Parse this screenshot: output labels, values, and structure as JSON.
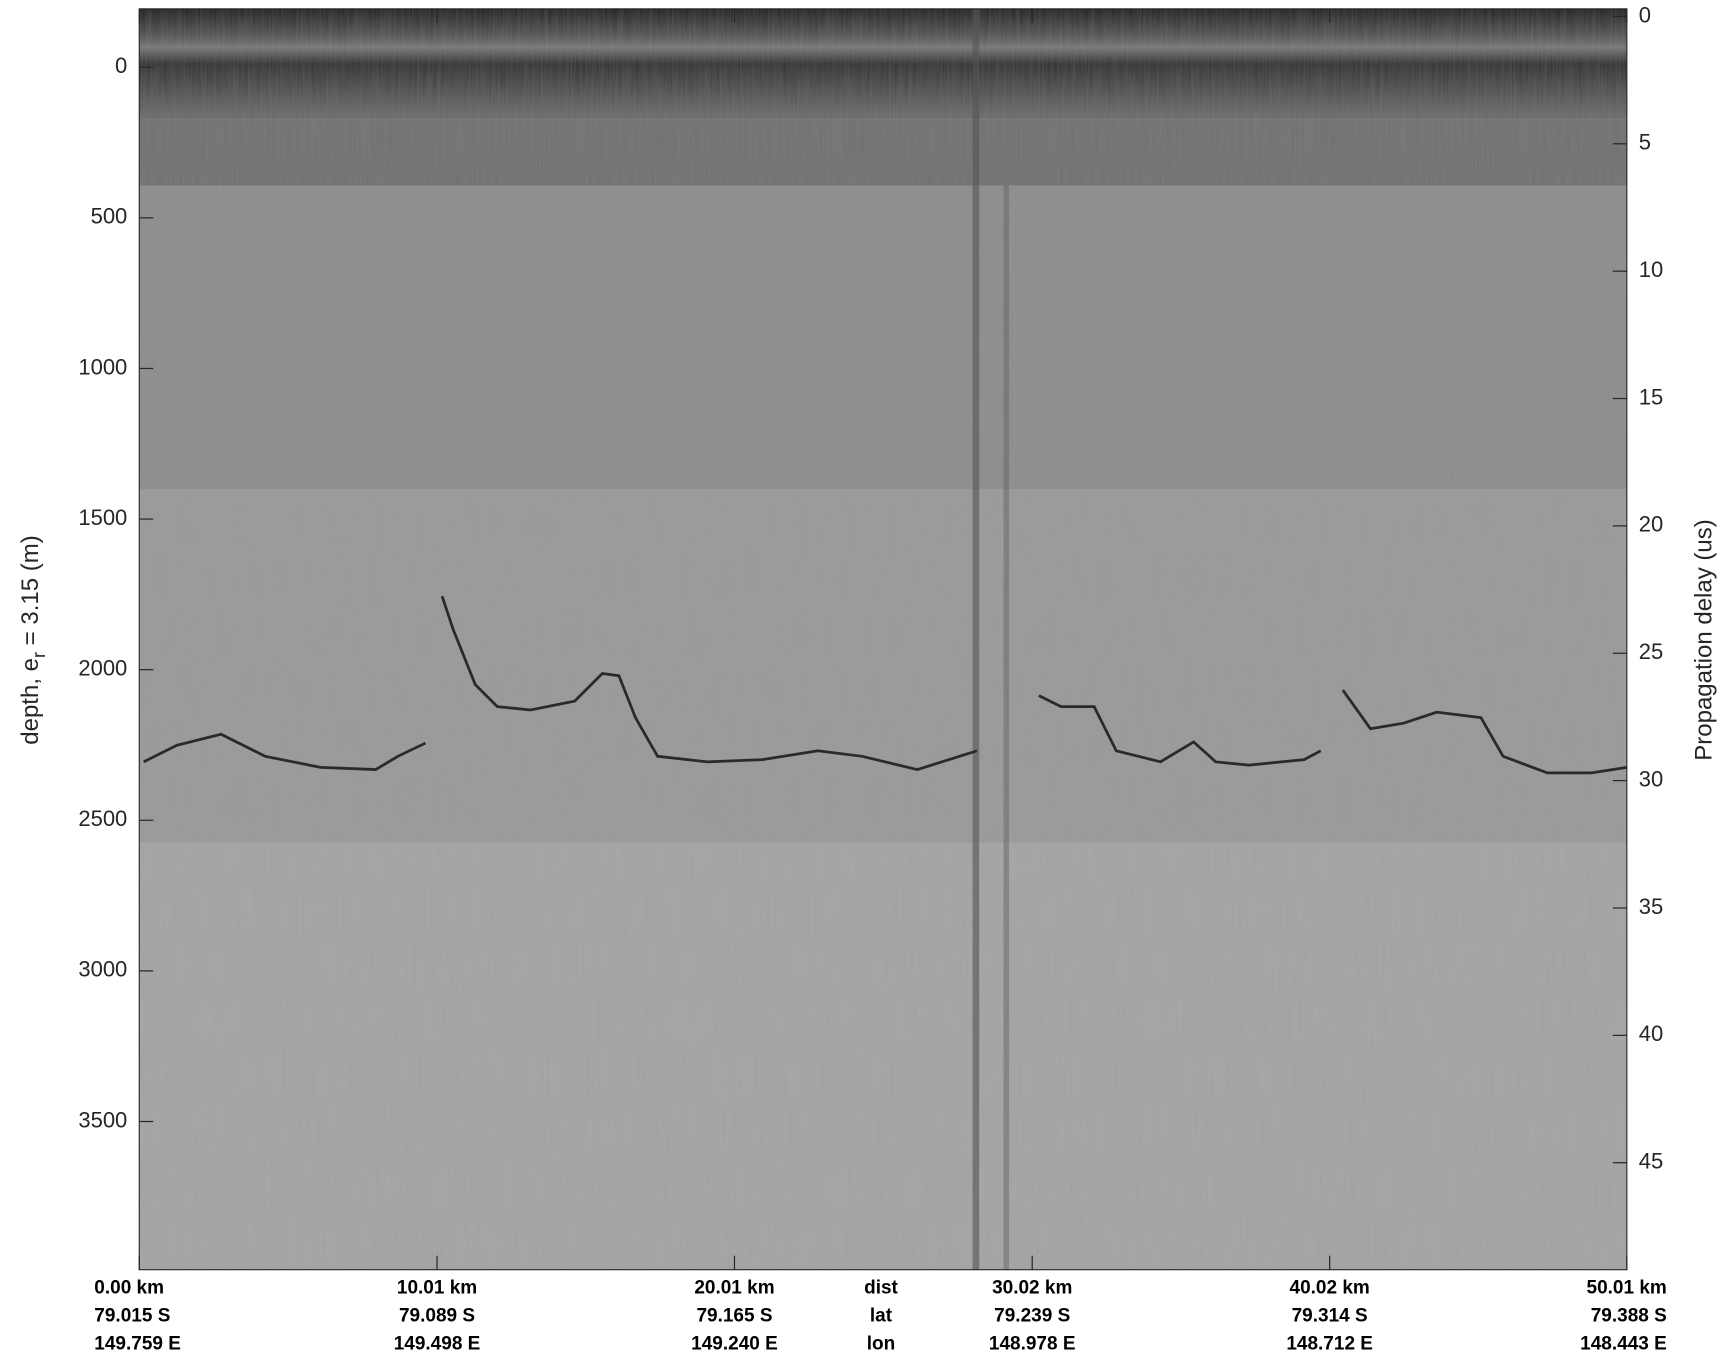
{
  "chart_data": {
    "type": "radargram",
    "y_label": {
      "prefix": "depth, e",
      "subscript": "r",
      "suffix": " = 3.15 (m)"
    },
    "y2_label": "Propagation delay (us)",
    "ylim": [
      -194,
      3992
    ],
    "yticks": [
      0,
      500,
      1000,
      1500,
      2000,
      2500,
      3000,
      3500
    ],
    "y2lim": [
      -0.3,
      49.2
    ],
    "y2ticks": [
      0,
      5,
      10,
      15,
      20,
      25,
      30,
      35,
      40,
      45
    ],
    "xlim": [
      0,
      50.01
    ],
    "xticks": [
      {
        "value": 0,
        "label": "0.00 km"
      },
      {
        "value": 10.01,
        "label": "10.01 km"
      },
      {
        "value": 20.01,
        "label": "20.01 km"
      },
      {
        "value": 30.02,
        "label": "30.02 km"
      },
      {
        "value": 40.02,
        "label": "40.02 km"
      },
      {
        "value": 50.01,
        "label": "50.01 km"
      }
    ],
    "lat_labels": [
      "79.015 S",
      "79.089 S",
      "79.165 S",
      "79.239 S",
      "79.314 S",
      "79.388 S"
    ],
    "lon_labels": [
      "149.759 E",
      "149.498 E",
      "149.240 E",
      "148.978 E",
      "148.712 E",
      "148.443 E"
    ],
    "row_names": [
      "dist",
      "lat",
      "lon"
    ]
  }
}
